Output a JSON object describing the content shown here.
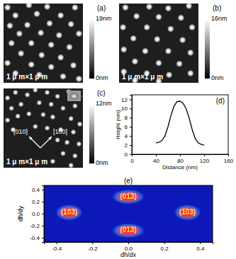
{
  "chart_data": [
    {
      "type": "image",
      "title": "(a)",
      "annotations": [
        "1 μ m×1 μ m"
      ],
      "xlim": [
        0,
        1
      ],
      "ylim": [
        0,
        1
      ],
      "colorbar_range": [
        0,
        19
      ],
      "colorbar_ticks": [
        {
          "value": 19,
          "label": "19nm"
        },
        {
          "value": 0,
          "label": "0nm"
        }
      ],
      "dots": [
        [
          0.05,
          0.05
        ],
        [
          0.32,
          0.02
        ],
        [
          0.55,
          0.04
        ],
        [
          0.9,
          0.05
        ],
        [
          0.15,
          0.15
        ],
        [
          0.42,
          0.13
        ],
        [
          0.72,
          0.15
        ],
        [
          0.08,
          0.28
        ],
        [
          0.3,
          0.27
        ],
        [
          0.58,
          0.25
        ],
        [
          0.85,
          0.26
        ],
        [
          0.2,
          0.38
        ],
        [
          0.47,
          0.37
        ],
        [
          0.7,
          0.4
        ],
        [
          0.95,
          0.38
        ],
        [
          0.1,
          0.5
        ],
        [
          0.35,
          0.5
        ],
        [
          0.6,
          0.52
        ],
        [
          0.83,
          0.55
        ],
        [
          0.22,
          0.63
        ],
        [
          0.48,
          0.65
        ],
        [
          0.72,
          0.68
        ],
        [
          0.05,
          0.75
        ],
        [
          0.35,
          0.77
        ],
        [
          0.6,
          0.8
        ],
        [
          0.88,
          0.78
        ],
        [
          0.15,
          0.88
        ],
        [
          0.45,
          0.9
        ],
        [
          0.75,
          0.92
        ],
        [
          0.95,
          0.95
        ]
      ]
    },
    {
      "type": "image",
      "title": "(b)",
      "annotations": [
        "1 μ m×1 μ m"
      ],
      "xlim": [
        0,
        1
      ],
      "ylim": [
        0,
        1
      ],
      "colorbar_range": [
        0,
        16
      ],
      "colorbar_ticks": [
        {
          "value": 16,
          "label": "16nm"
        },
        {
          "value": 0,
          "label": "0nm"
        }
      ],
      "dots": [
        [
          0.08,
          0.05
        ],
        [
          0.38,
          0.04
        ],
        [
          0.62,
          0.06
        ],
        [
          0.88,
          0.03
        ],
        [
          0.22,
          0.16
        ],
        [
          0.5,
          0.17
        ],
        [
          0.78,
          0.18
        ],
        [
          0.05,
          0.3
        ],
        [
          0.35,
          0.3
        ],
        [
          0.65,
          0.32
        ],
        [
          0.92,
          0.3
        ],
        [
          0.18,
          0.44
        ],
        [
          0.48,
          0.45
        ],
        [
          0.8,
          0.46
        ],
        [
          0.06,
          0.58
        ],
        [
          0.33,
          0.6
        ],
        [
          0.62,
          0.6
        ],
        [
          0.9,
          0.62
        ],
        [
          0.2,
          0.73
        ],
        [
          0.5,
          0.75
        ],
        [
          0.76,
          0.76
        ],
        [
          0.06,
          0.86
        ],
        [
          0.35,
          0.88
        ],
        [
          0.63,
          0.9
        ],
        [
          0.9,
          0.88
        ],
        [
          0.2,
          0.97
        ],
        [
          0.5,
          0.98
        ]
      ]
    },
    {
      "type": "image",
      "title": "(c)",
      "annotations": [
        "1 μ m×1 μ m",
        "[010]",
        "[100]"
      ],
      "xlim": [
        0,
        1
      ],
      "ylim": [
        0,
        1
      ],
      "colorbar_range": [
        0,
        12
      ],
      "colorbar_ticks": [
        {
          "value": 12,
          "label": "12nm"
        },
        {
          "value": 0,
          "label": "0nm"
        }
      ],
      "dots": [
        [
          0.05,
          0.12
        ],
        [
          0.15,
          0.05
        ],
        [
          0.3,
          0.08
        ],
        [
          0.4,
          0.02
        ],
        [
          0.55,
          0.05
        ],
        [
          0.68,
          0.1
        ],
        [
          0.82,
          0.04
        ],
        [
          0.95,
          0.1
        ],
        [
          0.1,
          0.25
        ],
        [
          0.22,
          0.2
        ],
        [
          0.45,
          0.18
        ],
        [
          0.6,
          0.2
        ],
        [
          0.75,
          0.25
        ],
        [
          0.9,
          0.22
        ],
        [
          0.05,
          0.4
        ],
        [
          0.18,
          0.35
        ],
        [
          0.32,
          0.32
        ],
        [
          0.5,
          0.33
        ],
        [
          0.62,
          0.36
        ],
        [
          0.85,
          0.38
        ],
        [
          0.96,
          0.45
        ],
        [
          0.12,
          0.52
        ],
        [
          0.4,
          0.48
        ],
        [
          0.55,
          0.5
        ],
        [
          0.72,
          0.52
        ],
        [
          0.88,
          0.55
        ],
        [
          0.68,
          0.65
        ],
        [
          0.8,
          0.68
        ],
        [
          0.95,
          0.7
        ],
        [
          0.75,
          0.82
        ],
        [
          0.9,
          0.85
        ],
        [
          0.62,
          0.92
        ],
        [
          0.85,
          0.97
        ]
      ]
    },
    {
      "type": "line",
      "title": "(d)",
      "x_label": "Distance (nm)",
      "y_label": "Height (nm)",
      "x": [
        40,
        45,
        50,
        55,
        60,
        65,
        70,
        75,
        80,
        85,
        90,
        95,
        100,
        105,
        110,
        115,
        120
      ],
      "values": [
        2.5,
        2.6,
        3,
        4,
        6,
        8.5,
        10.5,
        11.5,
        11.6,
        11.2,
        10,
        8,
        5.5,
        3.5,
        2.5,
        2.2,
        2
      ],
      "color": "#000000",
      "xlim": [
        0,
        160
      ],
      "ylim": [
        0,
        13
      ],
      "xticks": [
        0,
        40,
        80,
        120,
        160
      ],
      "yticks": [
        0,
        2,
        4,
        6,
        8,
        10,
        12
      ]
    },
    {
      "type": "heatmap",
      "title": "(e)",
      "x_label": "dh/dx",
      "y_label": "dh/dy",
      "xlim": [
        -0.47,
        0.47
      ],
      "ylim": [
        -0.47,
        0.47
      ],
      "xticks": [
        -0.4,
        -0.2,
        {
          "value": 0,
          "label": "0.0"
        },
        0.2,
        0.4
      ],
      "yticks": [
        -0.4,
        -0.2,
        {
          "value": 0,
          "label": "0.0"
        },
        0.2,
        0.4
      ],
      "spots": [
        {
          "x": 0,
          "y": 0.28,
          "label": "(01̅3)"
        },
        {
          "x": -0.33,
          "y": 0.02,
          "label": "(103)"
        },
        {
          "x": 0.33,
          "y": 0.02,
          "label": "(1̅03)"
        },
        {
          "x": 0,
          "y": -0.28,
          "label": "(013)"
        }
      ]
    }
  ]
}
